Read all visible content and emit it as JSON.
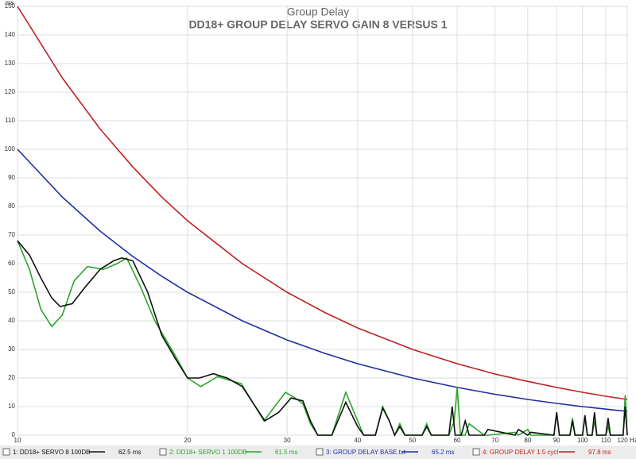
{
  "chart_data": {
    "type": "line",
    "title": "Group Delay",
    "subtitle": "DD18+ GROUP DELAY SERVO GAIN 8 VERSUS 1",
    "ylabel": "ms",
    "xscale": "log",
    "grid": true,
    "xlim": [
      10,
      120
    ],
    "xticks": [
      10,
      20,
      30,
      40,
      50,
      60,
      70,
      80,
      90,
      100,
      110,
      {
        "value": 120,
        "label": "120 Hz"
      }
    ],
    "ylim": [
      0,
      150
    ],
    "yticks": [
      0,
      10,
      20,
      30,
      40,
      50,
      60,
      70,
      80,
      90,
      100,
      110,
      120,
      130,
      140,
      150
    ],
    "series": [
      {
        "name": "1: DD18+ SERVO 8 100DB",
        "legend_value": "62.5 ms",
        "color": "#111111",
        "x": [
          10,
          10.5,
          11,
          11.5,
          11.9,
          12.5,
          13.2,
          14,
          14.8,
          15.3,
          16,
          17,
          18,
          19,
          20,
          21,
          22.2,
          23.5,
          25,
          27.4,
          29,
          30.5,
          32,
          33,
          34,
          36,
          38.1,
          40,
          41,
          43,
          44.3,
          45.5,
          46.5,
          47.5,
          48.5,
          52,
          53,
          54,
          58,
          58.8,
          59.5,
          61,
          62,
          63,
          67,
          68,
          76,
          77,
          80,
          81,
          89,
          90,
          91,
          95,
          96,
          97,
          100,
          101,
          102,
          104,
          105,
          106,
          110,
          111,
          112,
          118,
          119,
          120
        ],
        "values": [
          68,
          63,
          55,
          48,
          45,
          46,
          52,
          58,
          61,
          62,
          61,
          50,
          35,
          27,
          20,
          20,
          21.5,
          20,
          17,
          5,
          8,
          13,
          12,
          5,
          0,
          0,
          11.5,
          3,
          0,
          0,
          9.5,
          5,
          0,
          3,
          0,
          0,
          3,
          0,
          0,
          10,
          0,
          0,
          5,
          0,
          0,
          2,
          0,
          2,
          0,
          1,
          0,
          8,
          0,
          0,
          5,
          0,
          0,
          7,
          0,
          0,
          8,
          0,
          0,
          6,
          0,
          0,
          10,
          0
        ]
      },
      {
        "name": "2: DD18+ SERVO 1 100DB",
        "legend_value": "61.5 ms",
        "color": "#2aa52a",
        "x": [
          10,
          10.5,
          11,
          11.5,
          12,
          12.6,
          13.3,
          14.2,
          15,
          15.6,
          16.5,
          17.5,
          19,
          20,
          21.1,
          22.6,
          24.9,
          27.3,
          29.8,
          31,
          32,
          33,
          34,
          36,
          38.1,
          40,
          41,
          43,
          44.3,
          45.5,
          46.5,
          47.5,
          48.5,
          52,
          53,
          54,
          58,
          59.3,
          60,
          60.8,
          62,
          63,
          67,
          68,
          76,
          77,
          80,
          81,
          89,
          90,
          91,
          95,
          96,
          97,
          100,
          101,
          102,
          104,
          105,
          106,
          110,
          111,
          112,
          118,
          119,
          120
        ],
        "values": [
          68,
          58,
          44,
          38,
          42,
          54,
          59,
          58,
          60,
          62,
          52,
          40,
          28,
          20,
          17,
          20.5,
          18,
          5,
          15,
          13,
          11,
          4,
          0,
          0,
          15,
          5,
          0,
          0,
          10,
          5,
          0,
          4,
          0,
          0,
          4,
          0,
          0,
          5,
          17,
          0,
          0,
          4,
          0,
          0,
          1,
          0,
          2,
          0,
          0,
          8,
          0,
          0,
          6,
          0,
          0,
          6,
          0,
          0,
          5,
          0,
          0,
          3,
          0,
          0,
          14,
          0
        ]
      },
      {
        "name": "3: GROUP DELAY BASE.txt",
        "legend_value": "65.2 ms",
        "color": "#1f2fa0",
        "x": [
          10,
          12,
          14,
          16,
          18,
          20,
          25,
          30,
          35,
          40,
          50,
          60,
          70,
          80,
          90,
          100,
          110,
          120
        ],
        "values": [
          100,
          83.3,
          71.4,
          62.5,
          55.6,
          50,
          40,
          33.3,
          28.6,
          25,
          20,
          16.7,
          14.3,
          12.5,
          11.1,
          10,
          9.1,
          8.3
        ]
      },
      {
        "name": "4: GROUP DELAY 1.5 cycl",
        "legend_value": "97.8 ms",
        "color": "#c02020",
        "x": [
          10,
          12,
          14,
          16,
          18,
          20,
          25,
          30,
          35,
          40,
          50,
          60,
          70,
          80,
          90,
          100,
          110,
          120
        ],
        "values": [
          150,
          125,
          107.1,
          93.8,
          83.3,
          75,
          60,
          50,
          42.9,
          37.5,
          30,
          25,
          21.4,
          18.8,
          16.7,
          15,
          13.6,
          12.5
        ]
      }
    ]
  }
}
